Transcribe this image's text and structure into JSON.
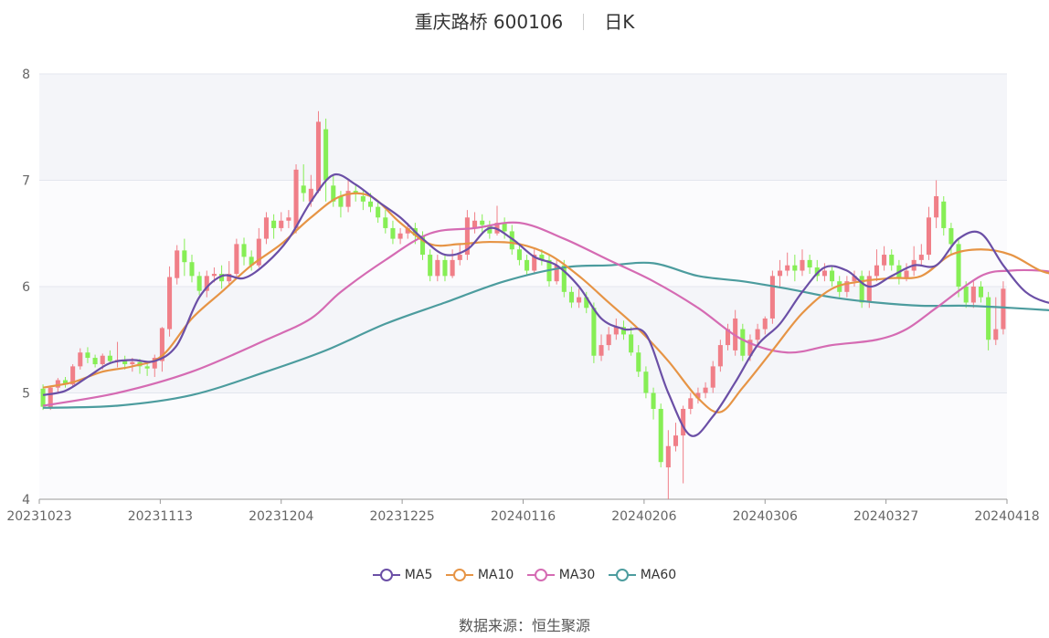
{
  "header": {
    "stock_name": "重庆路桥 600106",
    "period": "日K"
  },
  "source_label": "数据来源：恒生聚源",
  "colors": {
    "up": "#f07f88",
    "down": "#86ee55",
    "ma5": "#6b4fa6",
    "ma10": "#e69445",
    "ma30": "#d56bb3",
    "ma60": "#4c9c9e"
  },
  "chart_data": {
    "type": "candlestick",
    "title": "重庆路桥 600106",
    "subtitle": "日K",
    "ylim": [
      4,
      8
    ],
    "yticks": [
      "4",
      "5",
      "6",
      "7",
      "8"
    ],
    "xticks": [
      "20231023",
      "20231113",
      "20231204",
      "20231225",
      "20240116",
      "20240206",
      "20240306",
      "20240327",
      "20240418"
    ],
    "legend": [
      "MA5",
      "MA10",
      "MA30",
      "MA60"
    ],
    "candles": [
      [
        5.04,
        4.87,
        5.08,
        4.84
      ],
      [
        4.86,
        5.05,
        5.07,
        4.84
      ],
      [
        5.05,
        5.12,
        5.14,
        5.0
      ],
      [
        5.12,
        5.08,
        5.15,
        5.05
      ],
      [
        5.08,
        5.25,
        5.27,
        5.06
      ],
      [
        5.25,
        5.38,
        5.42,
        5.22
      ],
      [
        5.38,
        5.33,
        5.43,
        5.28
      ],
      [
        5.33,
        5.27,
        5.36,
        5.24
      ],
      [
        5.27,
        5.35,
        5.37,
        5.22
      ],
      [
        5.35,
        5.3,
        5.4,
        5.27
      ],
      [
        5.3,
        5.31,
        5.48,
        5.24
      ],
      [
        5.31,
        5.27,
        5.35,
        5.22
      ],
      [
        5.27,
        5.29,
        5.33,
        5.2
      ],
      [
        5.29,
        5.25,
        5.32,
        5.18
      ],
      [
        5.25,
        5.23,
        5.3,
        5.16
      ],
      [
        5.23,
        5.33,
        5.36,
        5.15
      ],
      [
        5.3,
        5.61,
        5.62,
        5.2
      ],
      [
        5.6,
        6.09,
        6.19,
        5.53
      ],
      [
        6.08,
        6.34,
        6.39,
        6.02
      ],
      [
        6.34,
        6.23,
        6.45,
        6.1
      ],
      [
        6.23,
        6.1,
        6.3,
        6.04
      ],
      [
        6.1,
        5.96,
        6.14,
        5.92
      ],
      [
        5.96,
        6.1,
        6.15,
        5.9
      ],
      [
        6.1,
        6.12,
        6.18,
        6.04
      ],
      [
        6.12,
        6.05,
        6.2,
        5.98
      ],
      [
        6.05,
        6.12,
        6.24,
        6.02
      ],
      [
        6.12,
        6.4,
        6.45,
        6.08
      ],
      [
        6.4,
        6.28,
        6.46,
        6.2
      ],
      [
        6.28,
        6.2,
        6.34,
        6.15
      ],
      [
        6.2,
        6.45,
        6.55,
        6.18
      ],
      [
        6.45,
        6.65,
        6.7,
        6.4
      ],
      [
        6.62,
        6.55,
        6.68,
        6.45
      ],
      [
        6.55,
        6.62,
        6.7,
        6.52
      ],
      [
        6.62,
        6.65,
        6.72,
        6.55
      ],
      [
        6.55,
        7.1,
        7.15,
        6.5
      ],
      [
        6.95,
        6.88,
        7.15,
        6.8
      ],
      [
        6.8,
        6.92,
        7.05,
        6.75
      ],
      [
        6.9,
        7.55,
        7.65,
        6.88
      ],
      [
        7.48,
        7.0,
        7.58,
        6.8
      ],
      [
        6.95,
        6.8,
        7.05,
        6.75
      ],
      [
        6.85,
        6.75,
        6.9,
        6.65
      ],
      [
        6.75,
        6.9,
        7.0,
        6.7
      ],
      [
        6.9,
        6.88,
        6.95,
        6.8
      ],
      [
        6.85,
        6.8,
        6.9,
        6.72
      ],
      [
        6.8,
        6.75,
        6.88,
        6.7
      ],
      [
        6.75,
        6.65,
        6.8,
        6.6
      ],
      [
        6.65,
        6.55,
        6.72,
        6.5
      ],
      [
        6.55,
        6.45,
        6.62,
        6.4
      ],
      [
        6.45,
        6.5,
        6.55,
        6.4
      ],
      [
        6.5,
        6.55,
        6.6,
        6.45
      ],
      [
        6.55,
        6.48,
        6.6,
        6.4
      ],
      [
        6.48,
        6.3,
        6.52,
        6.25
      ],
      [
        6.3,
        6.1,
        6.35,
        6.05
      ],
      [
        6.1,
        6.25,
        6.3,
        6.05
      ],
      [
        6.25,
        6.1,
        6.3,
        6.05
      ],
      [
        6.1,
        6.25,
        6.35,
        6.08
      ],
      [
        6.25,
        6.3,
        6.4,
        6.2
      ],
      [
        6.3,
        6.65,
        6.72,
        6.25
      ],
      [
        6.55,
        6.62,
        6.7,
        6.5
      ],
      [
        6.62,
        6.58,
        6.68,
        6.5
      ],
      [
        6.58,
        6.5,
        6.62,
        6.45
      ],
      [
        6.5,
        6.6,
        6.76,
        6.48
      ],
      [
        6.6,
        6.52,
        6.65,
        6.45
      ],
      [
        6.52,
        6.35,
        6.58,
        6.3
      ],
      [
        6.35,
        6.25,
        6.4,
        6.2
      ],
      [
        6.25,
        6.15,
        6.3,
        6.1
      ],
      [
        6.15,
        6.3,
        6.35,
        6.12
      ],
      [
        6.3,
        6.25,
        6.35,
        6.2
      ],
      [
        6.25,
        6.05,
        6.3,
        6.0
      ],
      [
        6.05,
        6.2,
        6.25,
        6.02
      ],
      [
        6.2,
        5.95,
        6.25,
        5.9
      ],
      [
        5.95,
        5.85,
        6.0,
        5.8
      ],
      [
        5.85,
        5.9,
        5.98,
        5.8
      ],
      [
        5.9,
        5.8,
        5.95,
        5.75
      ],
      [
        5.8,
        5.35,
        5.85,
        5.28
      ],
      [
        5.35,
        5.45,
        5.55,
        5.3
      ],
      [
        5.45,
        5.55,
        5.62,
        5.4
      ],
      [
        5.55,
        5.62,
        5.7,
        5.5
      ],
      [
        5.62,
        5.55,
        5.68,
        5.5
      ],
      [
        5.55,
        5.38,
        5.62,
        5.35
      ],
      [
        5.38,
        5.2,
        5.45,
        5.15
      ],
      [
        5.2,
        5.0,
        5.25,
        4.95
      ],
      [
        5.0,
        4.85,
        5.05,
        4.75
      ],
      [
        4.85,
        4.35,
        4.9,
        4.3
      ],
      [
        4.3,
        4.5,
        4.65,
        4.0
      ],
      [
        4.5,
        4.6,
        4.72,
        4.45
      ],
      [
        4.6,
        4.85,
        4.88,
        4.15
      ],
      [
        4.85,
        4.95,
        5.0,
        4.8
      ],
      [
        4.95,
        5.0,
        5.05,
        4.9
      ],
      [
        5.0,
        5.05,
        5.1,
        4.95
      ],
      [
        5.05,
        5.25,
        5.3,
        5.0
      ],
      [
        5.25,
        5.45,
        5.5,
        5.2
      ],
      [
        5.45,
        5.6,
        5.65,
        5.4
      ],
      [
        5.4,
        5.7,
        5.78,
        5.35
      ],
      [
        5.6,
        5.35,
        5.65,
        5.3
      ],
      [
        5.35,
        5.5,
        5.55,
        5.3
      ],
      [
        5.5,
        5.6,
        5.65,
        5.45
      ],
      [
        5.6,
        5.7,
        5.72,
        5.55
      ],
      [
        5.7,
        6.1,
        6.15,
        5.65
      ],
      [
        6.1,
        6.15,
        6.25,
        6.0
      ],
      [
        6.15,
        6.2,
        6.32,
        6.1
      ],
      [
        6.2,
        6.15,
        6.3,
        6.05
      ],
      [
        6.15,
        6.25,
        6.35,
        6.1
      ],
      [
        6.25,
        6.18,
        6.3,
        6.12
      ],
      [
        6.18,
        6.1,
        6.25,
        6.05
      ],
      [
        6.1,
        6.15,
        6.22,
        6.05
      ],
      [
        6.15,
        6.05,
        6.2,
        6.0
      ],
      [
        6.05,
        5.95,
        6.1,
        5.9
      ],
      [
        5.95,
        6.05,
        6.1,
        5.9
      ],
      [
        6.05,
        6.1,
        6.15,
        6.0
      ],
      [
        6.1,
        5.85,
        6.15,
        5.8
      ],
      [
        5.85,
        6.1,
        6.15,
        5.8
      ],
      [
        6.1,
        6.2,
        6.35,
        6.05
      ],
      [
        6.2,
        6.3,
        6.38,
        6.15
      ],
      [
        6.3,
        6.2,
        6.35,
        6.15
      ],
      [
        6.2,
        6.08,
        6.25,
        6.02
      ],
      [
        6.08,
        6.15,
        6.22,
        6.05
      ],
      [
        6.15,
        6.25,
        6.38,
        6.1
      ],
      [
        6.25,
        6.3,
        6.4,
        6.2
      ],
      [
        6.3,
        6.65,
        6.75,
        6.25
      ],
      [
        6.65,
        6.85,
        7.0,
        6.55
      ],
      [
        6.8,
        6.55,
        6.85,
        6.48
      ],
      [
        6.55,
        6.4,
        6.6,
        6.3
      ],
      [
        6.4,
        6.0,
        6.45,
        5.9
      ],
      [
        6.0,
        5.85,
        6.05,
        5.8
      ],
      [
        5.85,
        6.0,
        6.05,
        5.8
      ],
      [
        6.0,
        5.9,
        6.05,
        5.85
      ],
      [
        5.9,
        5.5,
        5.95,
        5.4
      ],
      [
        5.5,
        5.6,
        5.9,
        5.45
      ],
      [
        5.6,
        5.98,
        6.05,
        5.55
      ]
    ],
    "ma5": [
      [
        0,
        4.98
      ],
      [
        3,
        5.02
      ],
      [
        6,
        5.15
      ],
      [
        9,
        5.28
      ],
      [
        12,
        5.31
      ],
      [
        15,
        5.3
      ],
      [
        18,
        5.45
      ],
      [
        21,
        5.9
      ],
      [
        24,
        6.1
      ],
      [
        27,
        6.08
      ],
      [
        30,
        6.22
      ],
      [
        33,
        6.45
      ],
      [
        36,
        6.8
      ],
      [
        39,
        7.05
      ],
      [
        42,
        6.96
      ],
      [
        45,
        6.8
      ],
      [
        48,
        6.65
      ],
      [
        51,
        6.45
      ],
      [
        54,
        6.3
      ],
      [
        57,
        6.35
      ],
      [
        60,
        6.55
      ],
      [
        63,
        6.45
      ],
      [
        66,
        6.28
      ],
      [
        69,
        6.2
      ],
      [
        72,
        6.0
      ],
      [
        75,
        5.7
      ],
      [
        78,
        5.6
      ],
      [
        81,
        5.55
      ],
      [
        84,
        5.0
      ],
      [
        87,
        4.6
      ],
      [
        90,
        4.78
      ],
      [
        93,
        5.1
      ],
      [
        96,
        5.45
      ],
      [
        99,
        5.65
      ],
      [
        102,
        5.95
      ],
      [
        105,
        6.18
      ],
      [
        108,
        6.15
      ],
      [
        111,
        6.0
      ],
      [
        114,
        6.1
      ],
      [
        117,
        6.2
      ],
      [
        120,
        6.2
      ],
      [
        123,
        6.45
      ],
      [
        126,
        6.5
      ],
      [
        129,
        6.2
      ],
      [
        132,
        5.95
      ],
      [
        135,
        5.85
      ],
      [
        137,
        5.86
      ]
    ],
    "ma10": [
      [
        0,
        5.05
      ],
      [
        4,
        5.1
      ],
      [
        8,
        5.2
      ],
      [
        12,
        5.25
      ],
      [
        16,
        5.35
      ],
      [
        20,
        5.7
      ],
      [
        24,
        5.95
      ],
      [
        28,
        6.2
      ],
      [
        32,
        6.4
      ],
      [
        36,
        6.65
      ],
      [
        40,
        6.85
      ],
      [
        44,
        6.85
      ],
      [
        48,
        6.6
      ],
      [
        52,
        6.4
      ],
      [
        56,
        6.4
      ],
      [
        60,
        6.42
      ],
      [
        64,
        6.4
      ],
      [
        68,
        6.3
      ],
      [
        72,
        6.1
      ],
      [
        76,
        5.85
      ],
      [
        80,
        5.6
      ],
      [
        84,
        5.3
      ],
      [
        88,
        4.95
      ],
      [
        91,
        4.82
      ],
      [
        94,
        5.05
      ],
      [
        98,
        5.4
      ],
      [
        102,
        5.75
      ],
      [
        106,
        5.98
      ],
      [
        110,
        6.05
      ],
      [
        114,
        6.08
      ],
      [
        118,
        6.1
      ],
      [
        122,
        6.3
      ],
      [
        126,
        6.35
      ],
      [
        130,
        6.3
      ],
      [
        134,
        6.15
      ],
      [
        137,
        6.1
      ]
    ],
    "ma30": [
      [
        0,
        4.88
      ],
      [
        10,
        5.0
      ],
      [
        20,
        5.2
      ],
      [
        30,
        5.5
      ],
      [
        36,
        5.7
      ],
      [
        40,
        5.95
      ],
      [
        46,
        6.25
      ],
      [
        52,
        6.5
      ],
      [
        58,
        6.55
      ],
      [
        64,
        6.6
      ],
      [
        70,
        6.45
      ],
      [
        76,
        6.25
      ],
      [
        82,
        6.05
      ],
      [
        88,
        5.8
      ],
      [
        94,
        5.5
      ],
      [
        100,
        5.38
      ],
      [
        106,
        5.45
      ],
      [
        112,
        5.5
      ],
      [
        116,
        5.6
      ],
      [
        120,
        5.8
      ],
      [
        126,
        6.1
      ],
      [
        130,
        6.15
      ],
      [
        134,
        6.15
      ],
      [
        137,
        6.12
      ]
    ],
    "ma60": [
      [
        0,
        4.86
      ],
      [
        10,
        4.88
      ],
      [
        20,
        4.98
      ],
      [
        30,
        5.2
      ],
      [
        38,
        5.4
      ],
      [
        46,
        5.65
      ],
      [
        54,
        5.85
      ],
      [
        62,
        6.05
      ],
      [
        70,
        6.18
      ],
      [
        76,
        6.2
      ],
      [
        82,
        6.22
      ],
      [
        88,
        6.1
      ],
      [
        94,
        6.05
      ],
      [
        100,
        5.98
      ],
      [
        106,
        5.9
      ],
      [
        112,
        5.85
      ],
      [
        118,
        5.82
      ],
      [
        124,
        5.82
      ],
      [
        130,
        5.8
      ],
      [
        137,
        5.77
      ]
    ]
  }
}
